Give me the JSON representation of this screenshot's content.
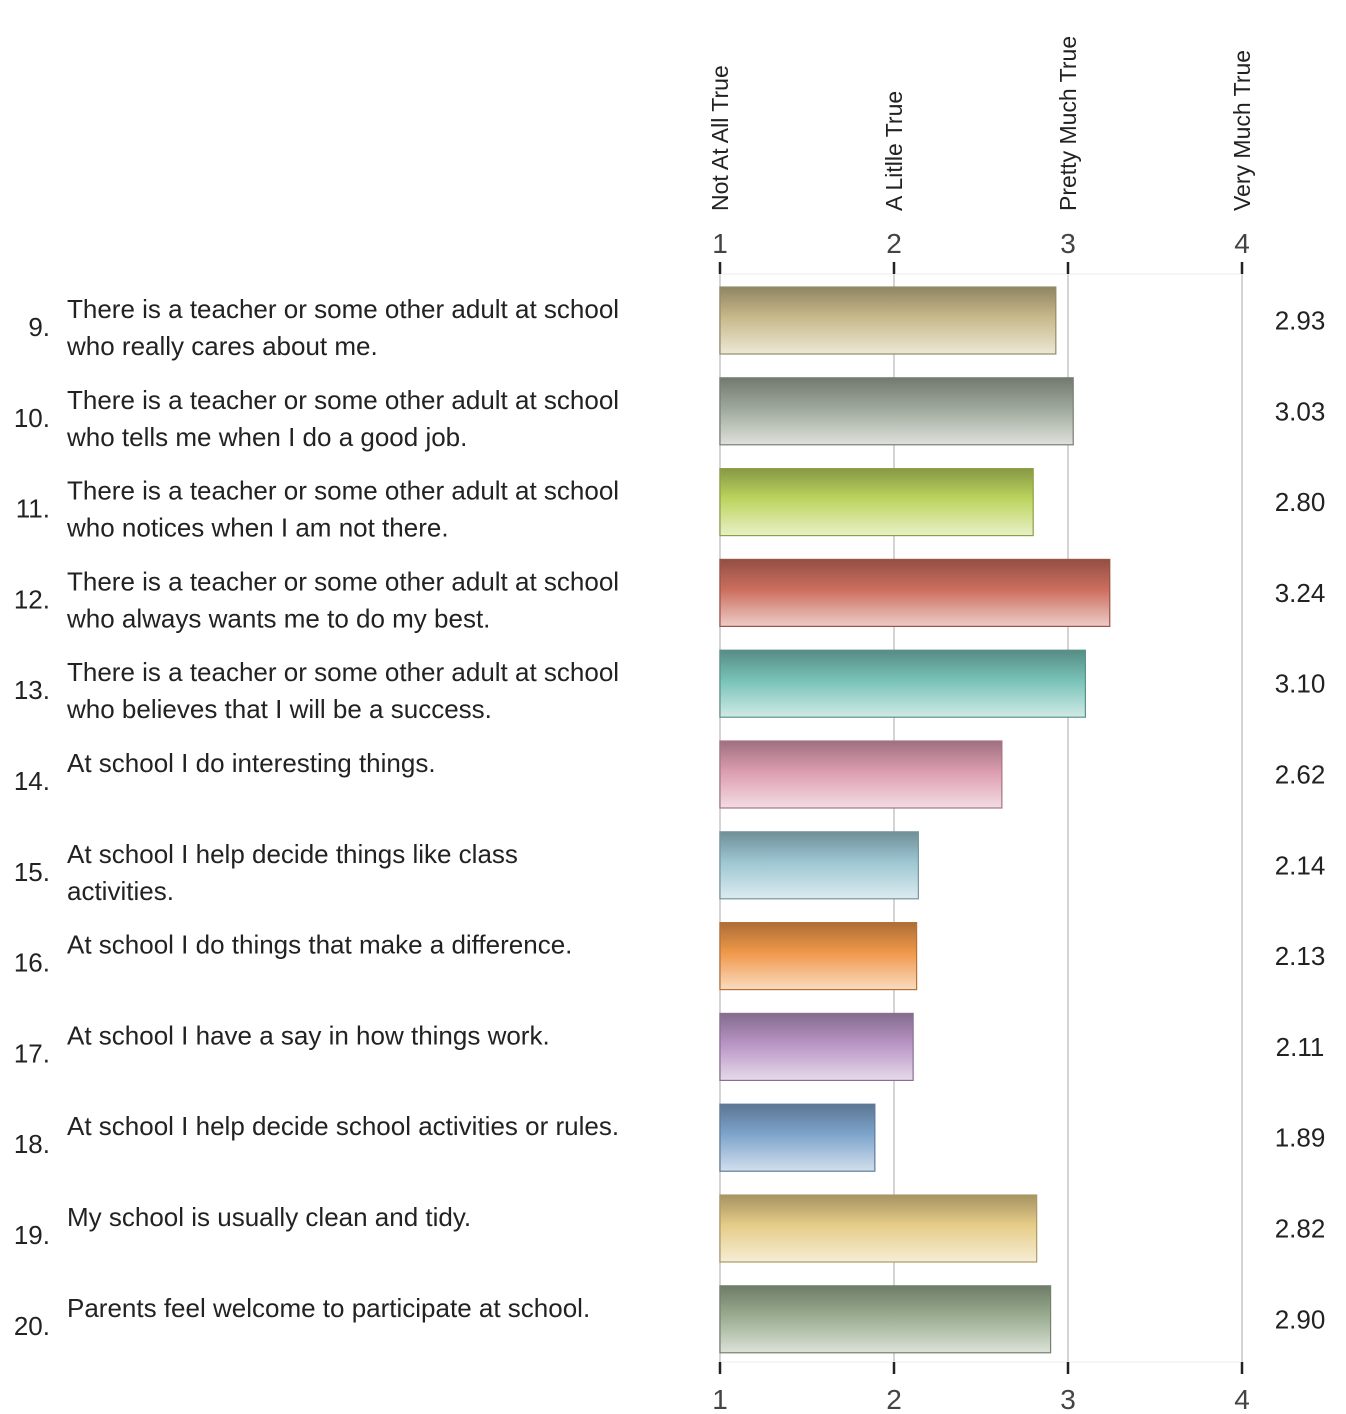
{
  "chart_data": {
    "type": "bar",
    "orientation": "horizontal",
    "scale_labels": [
      "Not At All True",
      "A Litlle True",
      "Pretty Much True",
      "Very Much True"
    ],
    "xlim": [
      1,
      4
    ],
    "x_ticks": [
      1,
      2,
      3,
      4
    ],
    "grid": true,
    "items": [
      {
        "number": "9.",
        "lines": [
          "There is a teacher or some other adult at school",
          "who really cares about me."
        ],
        "value": 2.93,
        "value_label": "2.93",
        "color": "#c8b98a"
      },
      {
        "number": "10.",
        "lines": [
          "There is a teacher or some other adult at school",
          "who tells me when I do a good job."
        ],
        "value": 3.03,
        "value_label": "3.03",
        "color": "#9ea89a"
      },
      {
        "number": "11.",
        "lines": [
          "There is a teacher or some other adult at school",
          "who notices when I am not there."
        ],
        "value": 2.8,
        "value_label": "2.80",
        "color": "#bcd45e"
      },
      {
        "number": "12.",
        "lines": [
          "There is a teacher or some other adult at school",
          "who always wants me to do my best."
        ],
        "value": 3.24,
        "value_label": "3.24",
        "color": "#cc6e5e"
      },
      {
        "number": "13.",
        "lines": [
          "There is a teacher or some other adult at school",
          "who believes that I will be a success."
        ],
        "value": 3.1,
        "value_label": "3.10",
        "color": "#78c2b8"
      },
      {
        "number": "14.",
        "lines": [
          "At school I do interesting things."
        ],
        "value": 2.62,
        "value_label": "2.62",
        "color": "#dc9cb0"
      },
      {
        "number": "15.",
        "lines": [
          "At school I help decide things like class",
          "activities."
        ],
        "value": 2.14,
        "value_label": "2.14",
        "color": "#9cc6d2"
      },
      {
        "number": "16.",
        "lines": [
          "At school I do things that make a difference."
        ],
        "value": 2.13,
        "value_label": "2.13",
        "color": "#f0984a"
      },
      {
        "number": "17.",
        "lines": [
          "At school I have a say in how things work."
        ],
        "value": 2.11,
        "value_label": "2.11",
        "color": "#b894c4"
      },
      {
        "number": "18.",
        "lines": [
          "At school I help decide school activities or rules."
        ],
        "value": 1.89,
        "value_label": "1.89",
        "color": "#7ea4cc"
      },
      {
        "number": "19.",
        "lines": [
          "My school is usually clean and tidy."
        ],
        "value": 2.82,
        "value_label": "2.82",
        "color": "#e6cc88"
      },
      {
        "number": "20.",
        "lines": [
          "Parents feel welcome to participate at school."
        ],
        "value": 2.9,
        "value_label": "2.90",
        "color": "#9aac90"
      }
    ]
  }
}
